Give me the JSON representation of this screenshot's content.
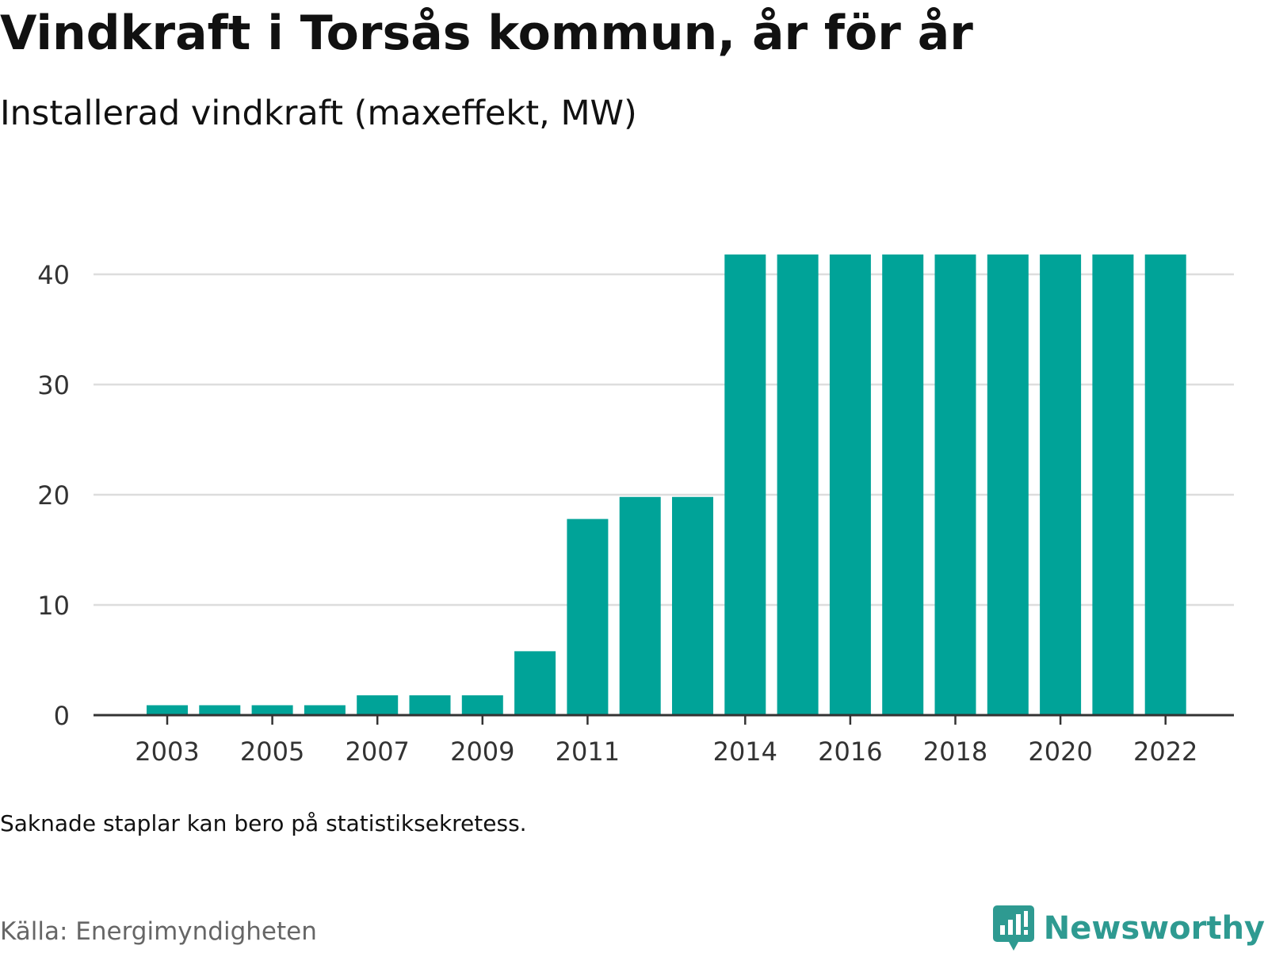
{
  "title": "Vindkraft i Torsås kommun, år för år",
  "subtitle": "Installerad vindkraft (maxeffekt, MW)",
  "note": "Saknade staplar kan bero på statistiksekretess.",
  "source": "Källa: Energimyndigheten",
  "brand": {
    "name": "Newsworthy",
    "logo_icon": "bar-chart-speech-bubble-icon",
    "color": "#2e9a91"
  },
  "chart_data": {
    "type": "bar",
    "title": "Vindkraft i Torsås kommun, år för år",
    "subtitle": "Installerad vindkraft (maxeffekt, MW)",
    "xlabel": "",
    "ylabel": "",
    "categories": [
      2003,
      2004,
      2005,
      2006,
      2007,
      2008,
      2009,
      2010,
      2011,
      2012,
      2013,
      2014,
      2015,
      2016,
      2017,
      2018,
      2019,
      2020,
      2021,
      2022
    ],
    "values": [
      0.9,
      0.9,
      0.9,
      0.9,
      1.8,
      1.8,
      1.8,
      5.8,
      17.8,
      19.8,
      19.8,
      41.8,
      41.8,
      41.8,
      41.8,
      41.8,
      41.8,
      41.8,
      41.8,
      41.8
    ],
    "ylim": [
      0,
      42
    ],
    "yticks": [
      0,
      10,
      20,
      30,
      40
    ],
    "xticks": [
      2003,
      2005,
      2007,
      2009,
      2011,
      2014,
      2016,
      2018,
      2020,
      2022
    ],
    "grid": true,
    "legend": "none",
    "bar_color": "#00a398"
  }
}
